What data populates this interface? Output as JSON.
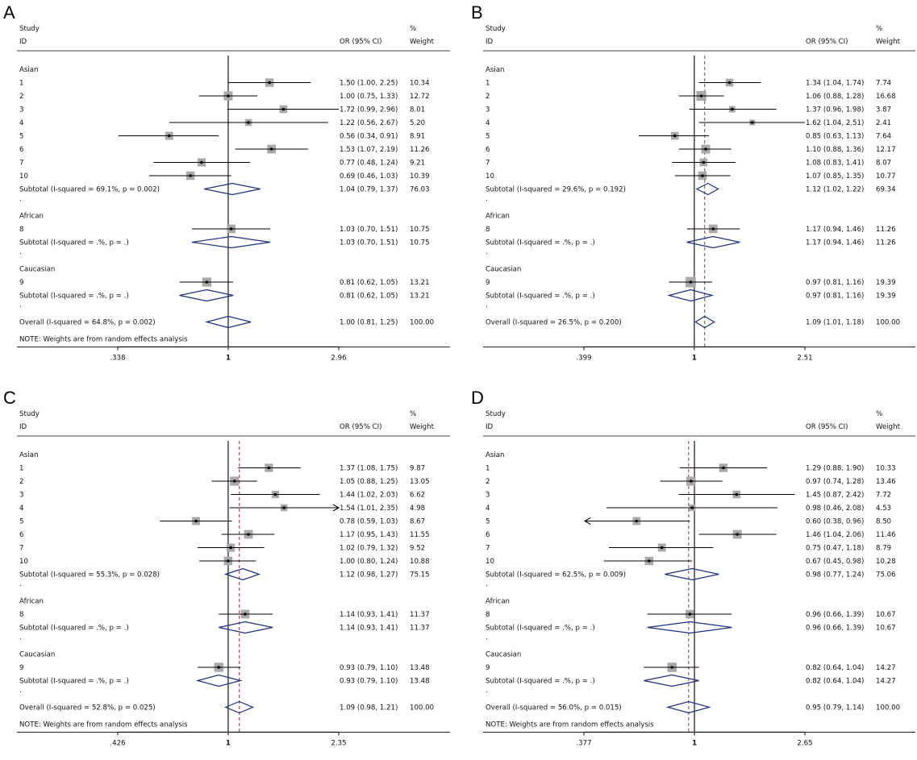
{
  "headers": {
    "study": "Study",
    "id": "ID",
    "or_ci": "OR (95% CI)",
    "pct": "%",
    "weight": "Weight"
  },
  "chart_data": [
    {
      "panel": "A",
      "type": "forest",
      "scale": "log",
      "ticks": [
        "0.338",
        "1",
        "2.96"
      ],
      "tick_labels": [
        ".338",
        "1",
        "2.96"
      ],
      "xlim": [
        0.338,
        2.96
      ],
      "overall_line": null,
      "note": "NOTE: Weights are from random effects analysis",
      "groups": [
        {
          "name": "Asian",
          "studies": [
            {
              "id": "1",
              "or": 1.5,
              "lo": 1.0,
              "hi": 2.25,
              "text": "1.50 (1.00, 2.25)",
              "weight": "10.34"
            },
            {
              "id": "2",
              "or": 1.0,
              "lo": 0.75,
              "hi": 1.33,
              "text": "1.00 (0.75, 1.33)",
              "weight": "12.72"
            },
            {
              "id": "3",
              "or": 1.72,
              "lo": 0.99,
              "hi": 2.96,
              "text": "1.72 (0.99, 2.96)",
              "weight": "8.01"
            },
            {
              "id": "4",
              "or": 1.22,
              "lo": 0.56,
              "hi": 2.67,
              "text": "1.22 (0.56, 2.67)",
              "weight": "5.20"
            },
            {
              "id": "5",
              "or": 0.56,
              "lo": 0.34,
              "hi": 0.91,
              "text": "0.56 (0.34, 0.91)",
              "weight": "8.91"
            },
            {
              "id": "6",
              "or": 1.53,
              "lo": 1.07,
              "hi": 2.19,
              "text": "1.53 (1.07, 2.19)",
              "weight": "11.26"
            },
            {
              "id": "7",
              "or": 0.77,
              "lo": 0.48,
              "hi": 1.24,
              "text": "0.77 (0.48, 1.24)",
              "weight": "9.21"
            },
            {
              "id": "10",
              "or": 0.69,
              "lo": 0.46,
              "hi": 1.03,
              "text": "0.69 (0.46, 1.03)",
              "weight": "10.39"
            }
          ],
          "subtotal": {
            "label": "Subtotal  (I-squared = 69.1%, p = 0.002)",
            "or": 1.04,
            "lo": 0.79,
            "hi": 1.37,
            "text": "1.04 (0.79, 1.37)",
            "weight": "76.03"
          }
        },
        {
          "name": "African",
          "studies": [
            {
              "id": "8",
              "or": 1.03,
              "lo": 0.7,
              "hi": 1.51,
              "text": "1.03 (0.70, 1.51)",
              "weight": "10.75"
            }
          ],
          "subtotal": {
            "label": "Subtotal  (I-squared = .%, p = .)",
            "or": 1.03,
            "lo": 0.7,
            "hi": 1.51,
            "text": "1.03 (0.70, 1.51)",
            "weight": "10.75"
          }
        },
        {
          "name": "Caucasian",
          "studies": [
            {
              "id": "9",
              "or": 0.81,
              "lo": 0.62,
              "hi": 1.05,
              "text": "0.81 (0.62, 1.05)",
              "weight": "13.21"
            }
          ],
          "subtotal": {
            "label": "Subtotal  (I-squared = .%, p = .)",
            "or": 0.81,
            "lo": 0.62,
            "hi": 1.05,
            "text": "0.81 (0.62, 1.05)",
            "weight": "13.21"
          }
        }
      ],
      "overall": {
        "label": "Overall  (I-squared = 64.8%, p = 0.002)",
        "or": 1.0,
        "lo": 0.81,
        "hi": 1.25,
        "text": "1.00 (0.81, 1.25)",
        "weight": "100.00"
      }
    },
    {
      "panel": "B",
      "type": "forest",
      "scale": "log",
      "ticks": [
        "0.399",
        "1",
        "2.51"
      ],
      "tick_labels": [
        ".399",
        "1",
        "2.51"
      ],
      "xlim": [
        0.399,
        2.51
      ],
      "overall_line": 1.09,
      "note": "",
      "groups": [
        {
          "name": "Asian",
          "studies": [
            {
              "id": "1",
              "or": 1.34,
              "lo": 1.04,
              "hi": 1.74,
              "text": "1.34 (1.04, 1.74)",
              "weight": "7.74"
            },
            {
              "id": "2",
              "or": 1.06,
              "lo": 0.88,
              "hi": 1.28,
              "text": "1.06 (0.88, 1.28)",
              "weight": "16.68"
            },
            {
              "id": "3",
              "or": 1.37,
              "lo": 0.96,
              "hi": 1.98,
              "text": "1.37 (0.96, 1.98)",
              "weight": "3.87"
            },
            {
              "id": "4",
              "or": 1.62,
              "lo": 1.04,
              "hi": 2.51,
              "text": "1.62 (1.04, 2.51)",
              "weight": "2.41"
            },
            {
              "id": "5",
              "or": 0.85,
              "lo": 0.63,
              "hi": 1.13,
              "text": "0.85 (0.63, 1.13)",
              "weight": "7.64"
            },
            {
              "id": "6",
              "or": 1.1,
              "lo": 0.88,
              "hi": 1.36,
              "text": "1.10 (0.88, 1.36)",
              "weight": "12.17"
            },
            {
              "id": "7",
              "or": 1.08,
              "lo": 0.83,
              "hi": 1.41,
              "text": "1.08 (0.83, 1.41)",
              "weight": "8.07"
            },
            {
              "id": "10",
              "or": 1.07,
              "lo": 0.85,
              "hi": 1.35,
              "text": "1.07 (0.85, 1.35)",
              "weight": "10.77"
            }
          ],
          "subtotal": {
            "label": "Subtotal  (I-squared = 29.6%, p = 0.192)",
            "or": 1.12,
            "lo": 1.02,
            "hi": 1.22,
            "text": "1.12 (1.02, 1.22)",
            "weight": "69.34"
          }
        },
        {
          "name": "African",
          "studies": [
            {
              "id": "8",
              "or": 1.17,
              "lo": 0.94,
              "hi": 1.46,
              "text": "1.17 (0.94, 1.46)",
              "weight": "11.26"
            }
          ],
          "subtotal": {
            "label": "Subtotal  (I-squared = .%, p = .)",
            "or": 1.17,
            "lo": 0.94,
            "hi": 1.46,
            "text": "1.17 (0.94, 1.46)",
            "weight": "11.26"
          }
        },
        {
          "name": "Caucasian",
          "studies": [
            {
              "id": "9",
              "or": 0.97,
              "lo": 0.81,
              "hi": 1.16,
              "text": "0.97 (0.81, 1.16)",
              "weight": "19.39"
            }
          ],
          "subtotal": {
            "label": "Subtotal  (I-squared = .%, p = .)",
            "or": 0.97,
            "lo": 0.81,
            "hi": 1.16,
            "text": "0.97 (0.81, 1.16)",
            "weight": "19.39"
          }
        }
      ],
      "overall": {
        "label": "Overall  (I-squared = 26.5%, p = 0.200)",
        "or": 1.09,
        "lo": 1.01,
        "hi": 1.18,
        "text": "1.09 (1.01, 1.18)",
        "weight": "100.00"
      }
    },
    {
      "panel": "C",
      "type": "forest",
      "scale": "log",
      "ticks": [
        "0.426",
        "1",
        "2.35"
      ],
      "tick_labels": [
        ".426",
        "1",
        "2.35"
      ],
      "xlim": [
        0.426,
        2.35
      ],
      "overall_line": 1.09,
      "note": "NOTE: Weights are from random effects analysis",
      "groups": [
        {
          "name": "Asian",
          "studies": [
            {
              "id": "1",
              "or": 1.37,
              "lo": 1.08,
              "hi": 1.75,
              "text": "1.37 (1.08, 1.75)",
              "weight": "9.87"
            },
            {
              "id": "2",
              "or": 1.05,
              "lo": 0.88,
              "hi": 1.25,
              "text": "1.05 (0.88, 1.25)",
              "weight": "13.05"
            },
            {
              "id": "3",
              "or": 1.44,
              "lo": 1.02,
              "hi": 2.03,
              "text": "1.44 (1.02, 2.03)",
              "weight": "6.62"
            },
            {
              "id": "4",
              "or": 1.54,
              "lo": 1.01,
              "hi": 2.35,
              "text": "1.54 (1.01, 2.35)",
              "weight": "4.98",
              "arrow": "right"
            },
            {
              "id": "5",
              "or": 0.78,
              "lo": 0.59,
              "hi": 1.03,
              "text": "0.78 (0.59, 1.03)",
              "weight": "8.67"
            },
            {
              "id": "6",
              "or": 1.17,
              "lo": 0.95,
              "hi": 1.43,
              "text": "1.17 (0.95, 1.43)",
              "weight": "11.55"
            },
            {
              "id": "7",
              "or": 1.02,
              "lo": 0.79,
              "hi": 1.32,
              "text": "1.02 (0.79, 1.32)",
              "weight": "9.52"
            },
            {
              "id": "10",
              "or": 1.0,
              "lo": 0.8,
              "hi": 1.24,
              "text": "1.00 (0.80, 1.24)",
              "weight": "10.88"
            }
          ],
          "subtotal": {
            "label": "Subtotal  (I-squared = 55.3%, p = 0.028)",
            "or": 1.12,
            "lo": 0.98,
            "hi": 1.27,
            "text": "1.12 (0.98, 1.27)",
            "weight": "75.15"
          }
        },
        {
          "name": "African",
          "studies": [
            {
              "id": "8",
              "or": 1.14,
              "lo": 0.93,
              "hi": 1.41,
              "text": "1.14 (0.93, 1.41)",
              "weight": "11.37"
            }
          ],
          "subtotal": {
            "label": "Subtotal  (I-squared = .%, p = .)",
            "or": 1.14,
            "lo": 0.93,
            "hi": 1.41,
            "text": "1.14 (0.93, 1.41)",
            "weight": "11.37"
          }
        },
        {
          "name": "Caucasian",
          "studies": [
            {
              "id": "9",
              "or": 0.93,
              "lo": 0.79,
              "hi": 1.1,
              "text": "0.93 (0.79, 1.10)",
              "weight": "13.48"
            }
          ],
          "subtotal": {
            "label": "Subtotal  (I-squared = .%, p = .)",
            "or": 0.93,
            "lo": 0.79,
            "hi": 1.1,
            "text": "0.93 (0.79, 1.10)",
            "weight": "13.48"
          }
        }
      ],
      "overall": {
        "label": "Overall  (I-squared = 52.8%, p = 0.025)",
        "or": 1.09,
        "lo": 0.98,
        "hi": 1.21,
        "text": "1.09 (0.98, 1.21)",
        "weight": "100.00"
      }
    },
    {
      "panel": "D",
      "type": "forest",
      "scale": "log",
      "ticks": [
        "0.377",
        "1",
        "2.65"
      ],
      "tick_labels": [
        ".377",
        "1",
        "2.65"
      ],
      "xlim": [
        0.377,
        2.65
      ],
      "overall_line": 0.95,
      "note": "NOTE: Weights are from random effects analysis",
      "groups": [
        {
          "name": "Asian",
          "studies": [
            {
              "id": "1",
              "or": 1.29,
              "lo": 0.88,
              "hi": 1.9,
              "text": "1.29 (0.88, 1.90)",
              "weight": "10.33"
            },
            {
              "id": "2",
              "or": 0.97,
              "lo": 0.74,
              "hi": 1.28,
              "text": "0.97 (0.74, 1.28)",
              "weight": "13.46"
            },
            {
              "id": "3",
              "or": 1.45,
              "lo": 0.87,
              "hi": 2.42,
              "text": "1.45 (0.87, 2.42)",
              "weight": "7.72"
            },
            {
              "id": "4",
              "or": 0.98,
              "lo": 0.46,
              "hi": 2.08,
              "text": "0.98 (0.46, 2.08)",
              "weight": "4.53"
            },
            {
              "id": "5",
              "or": 0.6,
              "lo": 0.38,
              "hi": 0.96,
              "text": "0.60 (0.38, 0.96)",
              "weight": "8.50",
              "arrow": "left"
            },
            {
              "id": "6",
              "or": 1.46,
              "lo": 1.04,
              "hi": 2.06,
              "text": "1.46 (1.04, 2.06)",
              "weight": "11.46"
            },
            {
              "id": "7",
              "or": 0.75,
              "lo": 0.47,
              "hi": 1.18,
              "text": "0.75 (0.47, 1.18)",
              "weight": "8.79"
            },
            {
              "id": "10",
              "or": 0.67,
              "lo": 0.45,
              "hi": 0.98,
              "text": "0.67 (0.45, 0.98)",
              "weight": "10.28"
            }
          ],
          "subtotal": {
            "label": "Subtotal  (I-squared = 62.5%, p = 0.009)",
            "or": 0.98,
            "lo": 0.77,
            "hi": 1.24,
            "text": "0.98 (0.77, 1.24)",
            "weight": "75.06"
          }
        },
        {
          "name": "African",
          "studies": [
            {
              "id": "8",
              "or": 0.96,
              "lo": 0.66,
              "hi": 1.39,
              "text": "0.96 (0.66, 1.39)",
              "weight": "10.67"
            }
          ],
          "subtotal": {
            "label": "Subtotal  (I-squared = .%, p = .)",
            "or": 0.96,
            "lo": 0.66,
            "hi": 1.39,
            "text": "0.96 (0.66, 1.39)",
            "weight": "10.67"
          }
        },
        {
          "name": "Caucasian",
          "studies": [
            {
              "id": "9",
              "or": 0.82,
              "lo": 0.64,
              "hi": 1.04,
              "text": "0.82 (0.64, 1.04)",
              "weight": "14.27"
            }
          ],
          "subtotal": {
            "label": "Subtotal  (I-squared = .%, p = .)",
            "or": 0.82,
            "lo": 0.64,
            "hi": 1.04,
            "text": "0.82 (0.64, 1.04)",
            "weight": "14.27"
          }
        }
      ],
      "overall": {
        "label": "Overall  (I-squared = 56.0%, p = 0.015)",
        "or": 0.95,
        "lo": 0.79,
        "hi": 1.14,
        "text": "0.95 (0.79, 1.14)",
        "weight": "100.00"
      }
    }
  ],
  "colors": {
    "diamond": "#1b2f86",
    "box": "#a9a9a9",
    "overall_line": "#b22a38",
    "line": "#000000"
  }
}
